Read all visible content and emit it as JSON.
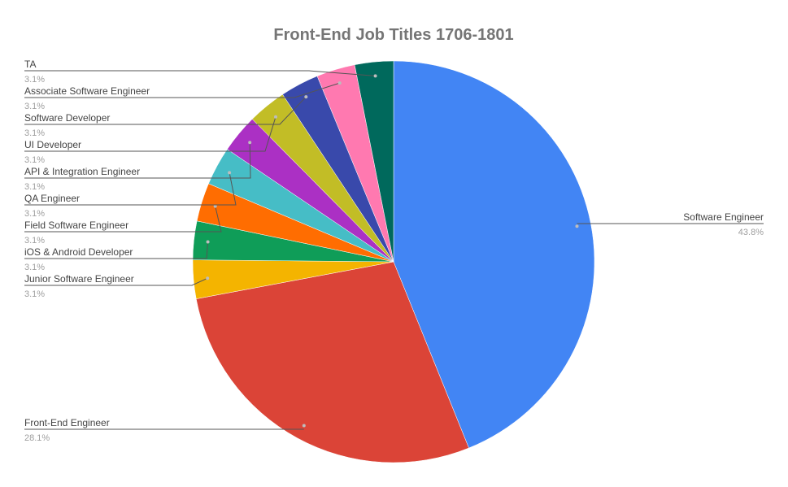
{
  "chart_data": {
    "type": "pie",
    "title": "Front-End Job Titles 1706-1801",
    "slices": [
      {
        "label": "Software Engineer",
        "value": 43.8,
        "display": "43.8%",
        "color": "#4285F4"
      },
      {
        "label": "Front-End Engineer",
        "value": 28.1,
        "display": "28.1%",
        "color": "#DB4437"
      },
      {
        "label": "Junior Software Engineer",
        "value": 3.1,
        "display": "3.1%",
        "color": "#F4B400"
      },
      {
        "label": "iOS & Android Developer",
        "value": 3.1,
        "display": "3.1%",
        "color": "#0F9D58"
      },
      {
        "label": "Field Software Engineer",
        "value": 3.1,
        "display": "3.1%",
        "color": "#FF6D01"
      },
      {
        "label": "QA Engineer",
        "value": 3.1,
        "display": "3.1%",
        "color": "#46BDC6"
      },
      {
        "label": "API & Integration Engineer",
        "value": 3.1,
        "display": "3.1%",
        "color": "#AB30C4"
      },
      {
        "label": "UI Developer",
        "value": 3.1,
        "display": "3.1%",
        "color": "#C2BD26"
      },
      {
        "label": "Software Developer",
        "value": 3.1,
        "display": "3.1%",
        "color": "#3949AB"
      },
      {
        "label": "Associate Software Engineer",
        "value": 3.1,
        "display": "3.1%",
        "color": "#FF79B0"
      },
      {
        "label": "TA",
        "value": 3.1,
        "display": "3.1%",
        "color": "#00695C"
      }
    ]
  }
}
